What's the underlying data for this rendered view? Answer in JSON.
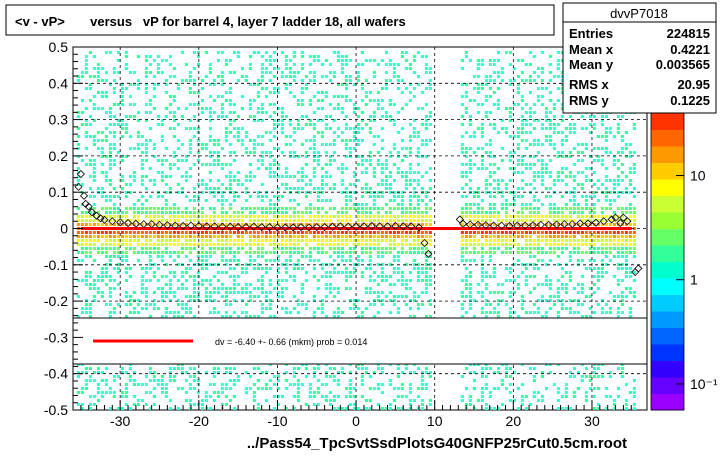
{
  "chart_data": {
    "type": "heatmap",
    "title": "<v - vP>       versus   vP for barrel 4, layer 7 ladder 18, all wafers",
    "xlabel": "../Pass54_TpcSvtSsdPlotsG40GNFP25rCut0.5cm.root",
    "ylabel": "",
    "xlim": [
      -36,
      37
    ],
    "ylim": [
      -0.5,
      0.5
    ],
    "x_ticks": [
      -30,
      -20,
      -10,
      0,
      10,
      20,
      30
    ],
    "x_tick_labels": [
      "-30",
      "-20",
      "-10",
      "0",
      "10",
      "20",
      "30"
    ],
    "y_ticks": [
      -0.5,
      -0.4,
      -0.3,
      -0.2,
      -0.1,
      0,
      0.1,
      0.2,
      0.3,
      0.4,
      0.5
    ],
    "y_tick_labels": [
      "-0.5",
      "-0.4",
      "-0.3",
      "-0.2",
      "-0.1",
      "0",
      "0.1",
      "0.2",
      "0.3",
      "0.4",
      "0.5"
    ],
    "grid": true,
    "stats": {
      "name": "dvvP7018",
      "rows": [
        {
          "label": "Entries",
          "value": "224815"
        },
        {
          "label": "Mean x",
          "value": "0.4221"
        },
        {
          "label": "Mean y",
          "value": "0.003565"
        },
        {
          "label": "RMS x",
          "value": "20.95"
        },
        {
          "label": "RMS y",
          "value": "0.1225"
        }
      ]
    },
    "palette": {
      "log_scale": true,
      "ticks": [
        {
          "value": 10,
          "label": "10"
        },
        {
          "value": 1,
          "label": "1"
        },
        {
          "value": 0.1,
          "label": "10⁻¹"
        }
      ]
    },
    "fit_legend": "dv =   -6.40 +-  0.66 (mkm) prob = 0.014",
    "fit_line": {
      "color": "#ff0000",
      "x_range": [
        -35,
        35
      ],
      "y": 0.0
    },
    "gap_x_range": [
      9.5,
      13
    ],
    "profile_points": [
      {
        "x": -35.0,
        "y": 0.15
      },
      {
        "x": -35.3,
        "y": 0.115
      },
      {
        "x": -34.6,
        "y": 0.09
      },
      {
        "x": -34.4,
        "y": 0.068
      },
      {
        "x": -34.0,
        "y": 0.06
      },
      {
        "x": -33.6,
        "y": 0.045
      },
      {
        "x": -33.0,
        "y": 0.035
      },
      {
        "x": -32.5,
        "y": 0.028
      },
      {
        "x": -32.0,
        "y": 0.024
      },
      {
        "x": -31.0,
        "y": 0.02
      },
      {
        "x": -30.0,
        "y": 0.017
      },
      {
        "x": -29.0,
        "y": 0.015
      },
      {
        "x": -28.0,
        "y": 0.013
      },
      {
        "x": -27.0,
        "y": 0.012
      },
      {
        "x": -26.0,
        "y": 0.012
      },
      {
        "x": -25.0,
        "y": 0.01
      },
      {
        "x": -24.0,
        "y": 0.009
      },
      {
        "x": -23.0,
        "y": 0.008
      },
      {
        "x": -22.0,
        "y": 0.007
      },
      {
        "x": -21.0,
        "y": 0.008
      },
      {
        "x": -20.0,
        "y": 0.007
      },
      {
        "x": -19.0,
        "y": 0.006
      },
      {
        "x": -18.0,
        "y": 0.006
      },
      {
        "x": -17.0,
        "y": 0.005
      },
      {
        "x": -16.0,
        "y": 0.005
      },
      {
        "x": -15.0,
        "y": 0.004
      },
      {
        "x": -14.0,
        "y": 0.004
      },
      {
        "x": -13.0,
        "y": 0.005
      },
      {
        "x": -12.0,
        "y": 0.004
      },
      {
        "x": -11.0,
        "y": 0.004
      },
      {
        "x": -10.0,
        "y": 0.003
      },
      {
        "x": -9.0,
        "y": 0.003
      },
      {
        "x": -8.0,
        "y": 0.003
      },
      {
        "x": -7.0,
        "y": 0.004
      },
      {
        "x": -6.0,
        "y": 0.003
      },
      {
        "x": -5.0,
        "y": 0.004
      },
      {
        "x": -4.0,
        "y": 0.004
      },
      {
        "x": -3.0,
        "y": 0.005
      },
      {
        "x": -2.0,
        "y": 0.006
      },
      {
        "x": -1.0,
        "y": 0.005
      },
      {
        "x": 0.0,
        "y": 0.005
      },
      {
        "x": 1.0,
        "y": 0.006
      },
      {
        "x": 2.0,
        "y": 0.007
      },
      {
        "x": 3.0,
        "y": 0.006
      },
      {
        "x": 4.0,
        "y": 0.006
      },
      {
        "x": 5.0,
        "y": 0.007
      },
      {
        "x": 6.0,
        "y": 0.006
      },
      {
        "x": 7.0,
        "y": 0.006
      },
      {
        "x": 8.0,
        "y": 0.003
      },
      {
        "x": 8.7,
        "y": -0.04
      },
      {
        "x": 9.2,
        "y": -0.07
      },
      {
        "x": 13.2,
        "y": 0.025
      },
      {
        "x": 13.6,
        "y": 0.013
      },
      {
        "x": 14.5,
        "y": 0.011
      },
      {
        "x": 15.5,
        "y": 0.01
      },
      {
        "x": 16.5,
        "y": 0.009
      },
      {
        "x": 17.5,
        "y": 0.008
      },
      {
        "x": 18.5,
        "y": 0.008
      },
      {
        "x": 19.5,
        "y": 0.007
      },
      {
        "x": 20.5,
        "y": 0.008
      },
      {
        "x": 21.5,
        "y": 0.008
      },
      {
        "x": 22.5,
        "y": 0.009
      },
      {
        "x": 23.5,
        "y": 0.01
      },
      {
        "x": 24.5,
        "y": 0.01
      },
      {
        "x": 25.5,
        "y": 0.011
      },
      {
        "x": 26.5,
        "y": 0.012
      },
      {
        "x": 27.5,
        "y": 0.012
      },
      {
        "x": 28.5,
        "y": 0.014
      },
      {
        "x": 29.5,
        "y": 0.014
      },
      {
        "x": 30.5,
        "y": 0.016
      },
      {
        "x": 31.5,
        "y": 0.02
      },
      {
        "x": 32.5,
        "y": 0.025
      },
      {
        "x": 33.0,
        "y": 0.03
      },
      {
        "x": 33.6,
        "y": 0.015
      },
      {
        "x": 34.0,
        "y": 0.03
      },
      {
        "x": 34.5,
        "y": 0.02
      },
      {
        "x": 35.5,
        "y": -0.12
      },
      {
        "x": 35.9,
        "y": -0.11
      }
    ]
  }
}
